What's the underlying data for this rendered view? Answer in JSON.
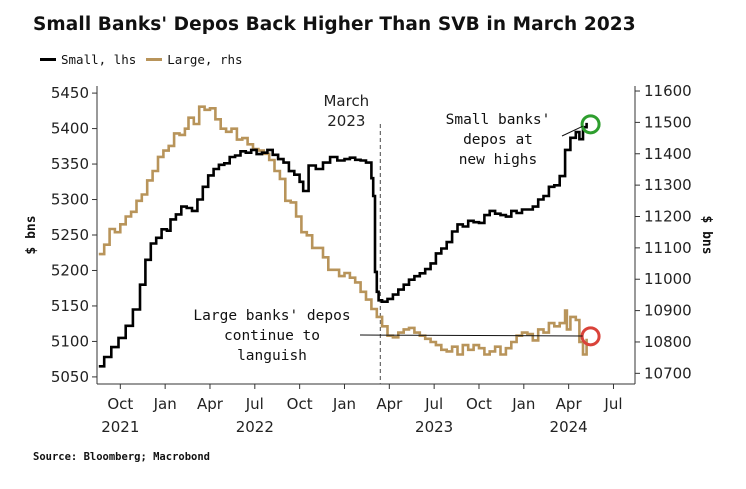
{
  "chart_data": {
    "type": "line",
    "title": "Small Banks' Depos Back Higher Than SVB in March 2023",
    "source": "Source: Bloomberg; Macrobond",
    "ylabel_left": "$ bns",
    "ylabel_right": "$ bns",
    "y_left": {
      "min": 5040,
      "max": 5460,
      "ticks": [
        5050,
        5100,
        5150,
        5200,
        5250,
        5300,
        5350,
        5400,
        5450
      ]
    },
    "y_right": {
      "min": 10666,
      "max": 11616,
      "ticks": [
        10700,
        10800,
        10900,
        11000,
        11100,
        11200,
        11300,
        11400,
        11500,
        11600
      ]
    },
    "x_range": [
      2021.62,
      2024.62
    ],
    "x_ticks": [
      {
        "t": 2021.75,
        "label": "Oct",
        "year": "2021"
      },
      {
        "t": 2022.0,
        "label": "Jan",
        "year": ""
      },
      {
        "t": 2022.25,
        "label": "Apr",
        "year": ""
      },
      {
        "t": 2022.5,
        "label": "Jul",
        "year": "2022"
      },
      {
        "t": 2022.75,
        "label": "Oct",
        "year": ""
      },
      {
        "t": 2023.0,
        "label": "Jan",
        "year": ""
      },
      {
        "t": 2023.25,
        "label": "Apr",
        "year": ""
      },
      {
        "t": 2023.5,
        "label": "Jul",
        "year": "2023"
      },
      {
        "t": 2023.75,
        "label": "Oct",
        "year": ""
      },
      {
        "t": 2024.0,
        "label": "Jan",
        "year": ""
      },
      {
        "t": 2024.25,
        "label": "Apr",
        "year": "2024"
      },
      {
        "t": 2024.5,
        "label": "Jul",
        "year": ""
      }
    ],
    "series": [
      {
        "name": "Small, lhs",
        "axis": "left",
        "color": "#000000",
        "points": [
          [
            2021.63,
            5065
          ],
          [
            2021.66,
            5078
          ],
          [
            2021.7,
            5092
          ],
          [
            2021.74,
            5105
          ],
          [
            2021.78,
            5122
          ],
          [
            2021.82,
            5145
          ],
          [
            2021.86,
            5180
          ],
          [
            2021.89,
            5215
          ],
          [
            2021.92,
            5238
          ],
          [
            2021.95,
            5246
          ],
          [
            2021.98,
            5258
          ],
          [
            2022.01,
            5256
          ],
          [
            2022.03,
            5272
          ],
          [
            2022.06,
            5279
          ],
          [
            2022.09,
            5290
          ],
          [
            2022.12,
            5288
          ],
          [
            2022.15,
            5284
          ],
          [
            2022.18,
            5300
          ],
          [
            2022.21,
            5318
          ],
          [
            2022.24,
            5334
          ],
          [
            2022.27,
            5343
          ],
          [
            2022.3,
            5349
          ],
          [
            2022.33,
            5351
          ],
          [
            2022.36,
            5360
          ],
          [
            2022.39,
            5362
          ],
          [
            2022.42,
            5368
          ],
          [
            2022.45,
            5366
          ],
          [
            2022.48,
            5370
          ],
          [
            2022.51,
            5364
          ],
          [
            2022.54,
            5366
          ],
          [
            2022.57,
            5370
          ],
          [
            2022.6,
            5363
          ],
          [
            2022.63,
            5357
          ],
          [
            2022.66,
            5352
          ],
          [
            2022.69,
            5340
          ],
          [
            2022.72,
            5335
          ],
          [
            2022.75,
            5325
          ],
          [
            2022.77,
            5312
          ],
          [
            2022.79,
            5312
          ],
          [
            2022.8,
            5348
          ],
          [
            2022.84,
            5343
          ],
          [
            2022.88,
            5352
          ],
          [
            2022.92,
            5360
          ],
          [
            2022.96,
            5355
          ],
          [
            2023.0,
            5357
          ],
          [
            2023.03,
            5359
          ],
          [
            2023.06,
            5356
          ],
          [
            2023.09,
            5355
          ],
          [
            2023.12,
            5352
          ],
          [
            2023.15,
            5330
          ],
          [
            2023.16,
            5305
          ],
          [
            2023.17,
            5198
          ],
          [
            2023.18,
            5170
          ],
          [
            2023.19,
            5158
          ],
          [
            2023.21,
            5156
          ],
          [
            2023.24,
            5160
          ],
          [
            2023.27,
            5166
          ],
          [
            2023.3,
            5173
          ],
          [
            2023.33,
            5180
          ],
          [
            2023.36,
            5187
          ],
          [
            2023.39,
            5192
          ],
          [
            2023.42,
            5196
          ],
          [
            2023.45,
            5202
          ],
          [
            2023.48,
            5210
          ],
          [
            2023.51,
            5224
          ],
          [
            2023.54,
            5231
          ],
          [
            2023.57,
            5240
          ],
          [
            2023.6,
            5255
          ],
          [
            2023.63,
            5265
          ],
          [
            2023.66,
            5262
          ],
          [
            2023.69,
            5270
          ],
          [
            2023.72,
            5268
          ],
          [
            2023.75,
            5267
          ],
          [
            2023.78,
            5278
          ],
          [
            2023.81,
            5284
          ],
          [
            2023.84,
            5280
          ],
          [
            2023.87,
            5278
          ],
          [
            2023.9,
            5276
          ],
          [
            2023.93,
            5284
          ],
          [
            2023.96,
            5281
          ],
          [
            2023.99,
            5286
          ],
          [
            2024.02,
            5286
          ],
          [
            2024.05,
            5290
          ],
          [
            2024.08,
            5300
          ],
          [
            2024.11,
            5305
          ],
          [
            2024.14,
            5318
          ],
          [
            2024.17,
            5320
          ],
          [
            2024.2,
            5333
          ],
          [
            2024.23,
            5370
          ],
          [
            2024.26,
            5387
          ],
          [
            2024.29,
            5395
          ],
          [
            2024.31,
            5385
          ],
          [
            2024.33,
            5402
          ],
          [
            2024.35,
            5408
          ]
        ]
      },
      {
        "name": "Large, rhs",
        "axis": "right",
        "color": "#b8945a",
        "points": [
          [
            2021.63,
            11080
          ],
          [
            2021.66,
            11110
          ],
          [
            2021.69,
            11160
          ],
          [
            2021.72,
            11150
          ],
          [
            2021.75,
            11175
          ],
          [
            2021.78,
            11200
          ],
          [
            2021.81,
            11215
          ],
          [
            2021.84,
            11250
          ],
          [
            2021.87,
            11270
          ],
          [
            2021.9,
            11315
          ],
          [
            2021.93,
            11345
          ],
          [
            2021.96,
            11390
          ],
          [
            2021.99,
            11410
          ],
          [
            2022.02,
            11425
          ],
          [
            2022.05,
            11465
          ],
          [
            2022.08,
            11460
          ],
          [
            2022.11,
            11480
          ],
          [
            2022.13,
            11515
          ],
          [
            2022.16,
            11495
          ],
          [
            2022.19,
            11550
          ],
          [
            2022.22,
            11540
          ],
          [
            2022.25,
            11545
          ],
          [
            2022.28,
            11510
          ],
          [
            2022.31,
            11480
          ],
          [
            2022.34,
            11470
          ],
          [
            2022.37,
            11480
          ],
          [
            2022.4,
            11445
          ],
          [
            2022.43,
            11450
          ],
          [
            2022.46,
            11430
          ],
          [
            2022.49,
            11415
          ],
          [
            2022.52,
            11410
          ],
          [
            2022.55,
            11400
          ],
          [
            2022.58,
            11380
          ],
          [
            2022.61,
            11345
          ],
          [
            2022.64,
            11320
          ],
          [
            2022.67,
            11250
          ],
          [
            2022.7,
            11245
          ],
          [
            2022.73,
            11200
          ],
          [
            2022.76,
            11150
          ],
          [
            2022.79,
            11140
          ],
          [
            2022.82,
            11100
          ],
          [
            2022.85,
            11100
          ],
          [
            2022.88,
            11070
          ],
          [
            2022.91,
            11030
          ],
          [
            2022.94,
            11030
          ],
          [
            2022.97,
            11010
          ],
          [
            2023.0,
            11020
          ],
          [
            2023.03,
            11005
          ],
          [
            2023.06,
            10990
          ],
          [
            2023.09,
            10960
          ],
          [
            2023.12,
            10935
          ],
          [
            2023.15,
            10905
          ],
          [
            2023.18,
            10880
          ],
          [
            2023.21,
            10850
          ],
          [
            2023.24,
            10820
          ],
          [
            2023.27,
            10815
          ],
          [
            2023.3,
            10830
          ],
          [
            2023.33,
            10840
          ],
          [
            2023.36,
            10845
          ],
          [
            2023.39,
            10830
          ],
          [
            2023.42,
            10820
          ],
          [
            2023.45,
            10810
          ],
          [
            2023.48,
            10800
          ],
          [
            2023.51,
            10790
          ],
          [
            2023.54,
            10775
          ],
          [
            2023.57,
            10770
          ],
          [
            2023.6,
            10785
          ],
          [
            2023.63,
            10760
          ],
          [
            2023.66,
            10790
          ],
          [
            2023.69,
            10775
          ],
          [
            2023.72,
            10790
          ],
          [
            2023.75,
            10780
          ],
          [
            2023.78,
            10760
          ],
          [
            2023.81,
            10770
          ],
          [
            2023.84,
            10785
          ],
          [
            2023.87,
            10760
          ],
          [
            2023.9,
            10780
          ],
          [
            2023.93,
            10800
          ],
          [
            2023.96,
            10820
          ],
          [
            2023.99,
            10830
          ],
          [
            2024.02,
            10825
          ],
          [
            2024.05,
            10805
          ],
          [
            2024.08,
            10840
          ],
          [
            2024.11,
            10830
          ],
          [
            2024.14,
            10860
          ],
          [
            2024.17,
            10850
          ],
          [
            2024.2,
            10860
          ],
          [
            2024.23,
            10900
          ],
          [
            2024.24,
            10840
          ],
          [
            2024.26,
            10880
          ],
          [
            2024.29,
            10870
          ],
          [
            2024.31,
            10800
          ],
          [
            2024.33,
            10760
          ],
          [
            2024.35,
            10810
          ]
        ]
      }
    ],
    "event_line": {
      "t": 2023.2,
      "label_lines": [
        "March",
        "2023"
      ]
    },
    "annotations": [
      {
        "lines": [
          "Small banks'",
          "depos at",
          "new highs"
        ]
      },
      {
        "lines": [
          "Large banks' depos",
          "continue to",
          "languish"
        ]
      }
    ],
    "markers": [
      {
        "series": "Small, lhs",
        "t": 2024.35,
        "y": 5406,
        "color": "#2e9e2e"
      },
      {
        "series": "Large, rhs",
        "t": 2024.35,
        "y": 10818,
        "color": "#d9433a"
      }
    ]
  }
}
